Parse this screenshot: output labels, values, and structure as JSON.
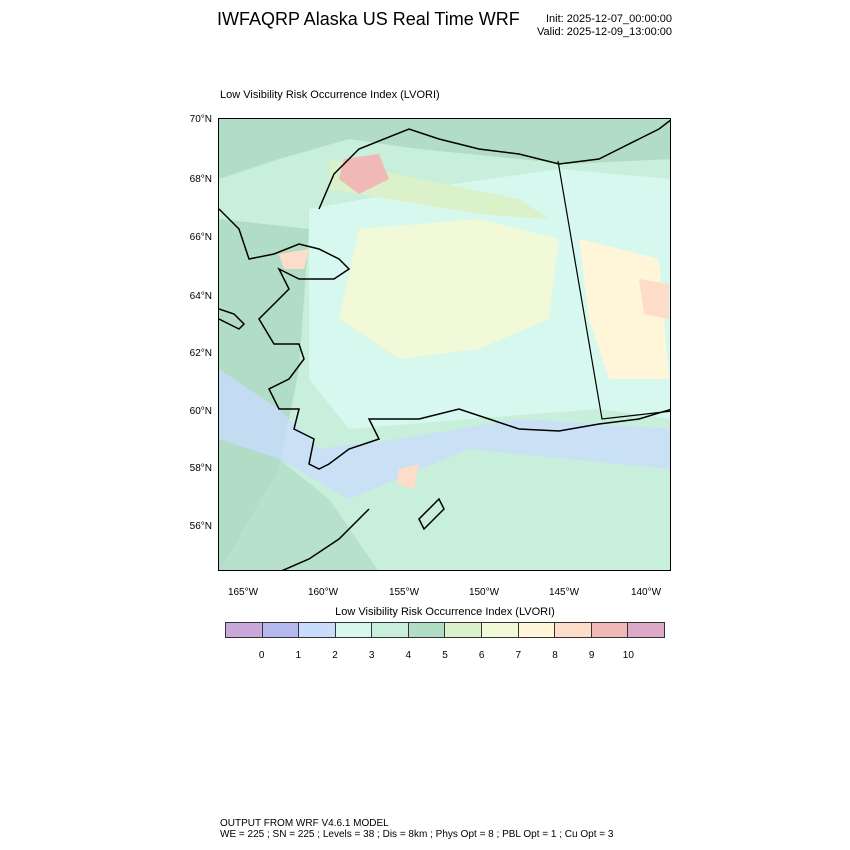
{
  "header": {
    "title": "IWFAQRP Alaska US Real Time WRF",
    "init": "Init: 2025-12-07_00:00:00",
    "valid": "Valid: 2025-12-09_13:00:00"
  },
  "plot": {
    "subtitle": "Low Visibility Risk Occurrence Index   (LVORI)",
    "lat_labels": [
      "70°N",
      "68°N",
      "66°N",
      "64°N",
      "62°N",
      "60°N",
      "58°N",
      "56°N"
    ],
    "lon_labels": [
      "165°W",
      "160°W",
      "155°W",
      "150°W",
      "145°W",
      "140°W"
    ]
  },
  "colorbar": {
    "title": "Low Visibility Risk Occurrence Index  (LVORI)",
    "labels": [
      "0",
      "1",
      "2",
      "3",
      "4",
      "5",
      "6",
      "7",
      "8",
      "9",
      "10"
    ],
    "colors": [
      "#c9a9da",
      "#b5b9ee",
      "#c9dcfb",
      "#d6f8ee",
      "#c8eedc",
      "#b1dcc5",
      "#dbf1c9",
      "#f1f9d9",
      "#fff5d9",
      "#fddcc9",
      "#f1b9b5",
      "#dca9c9"
    ]
  },
  "footer": {
    "line1": "OUTPUT FROM WRF V4.6.1 MODEL",
    "line2": "WE = 225 ; SN = 225 ; Levels = 38 ; Dis = 8km ; Phys Opt = 8 ; PBL Opt = 1 ; Cu Opt = 3"
  }
}
